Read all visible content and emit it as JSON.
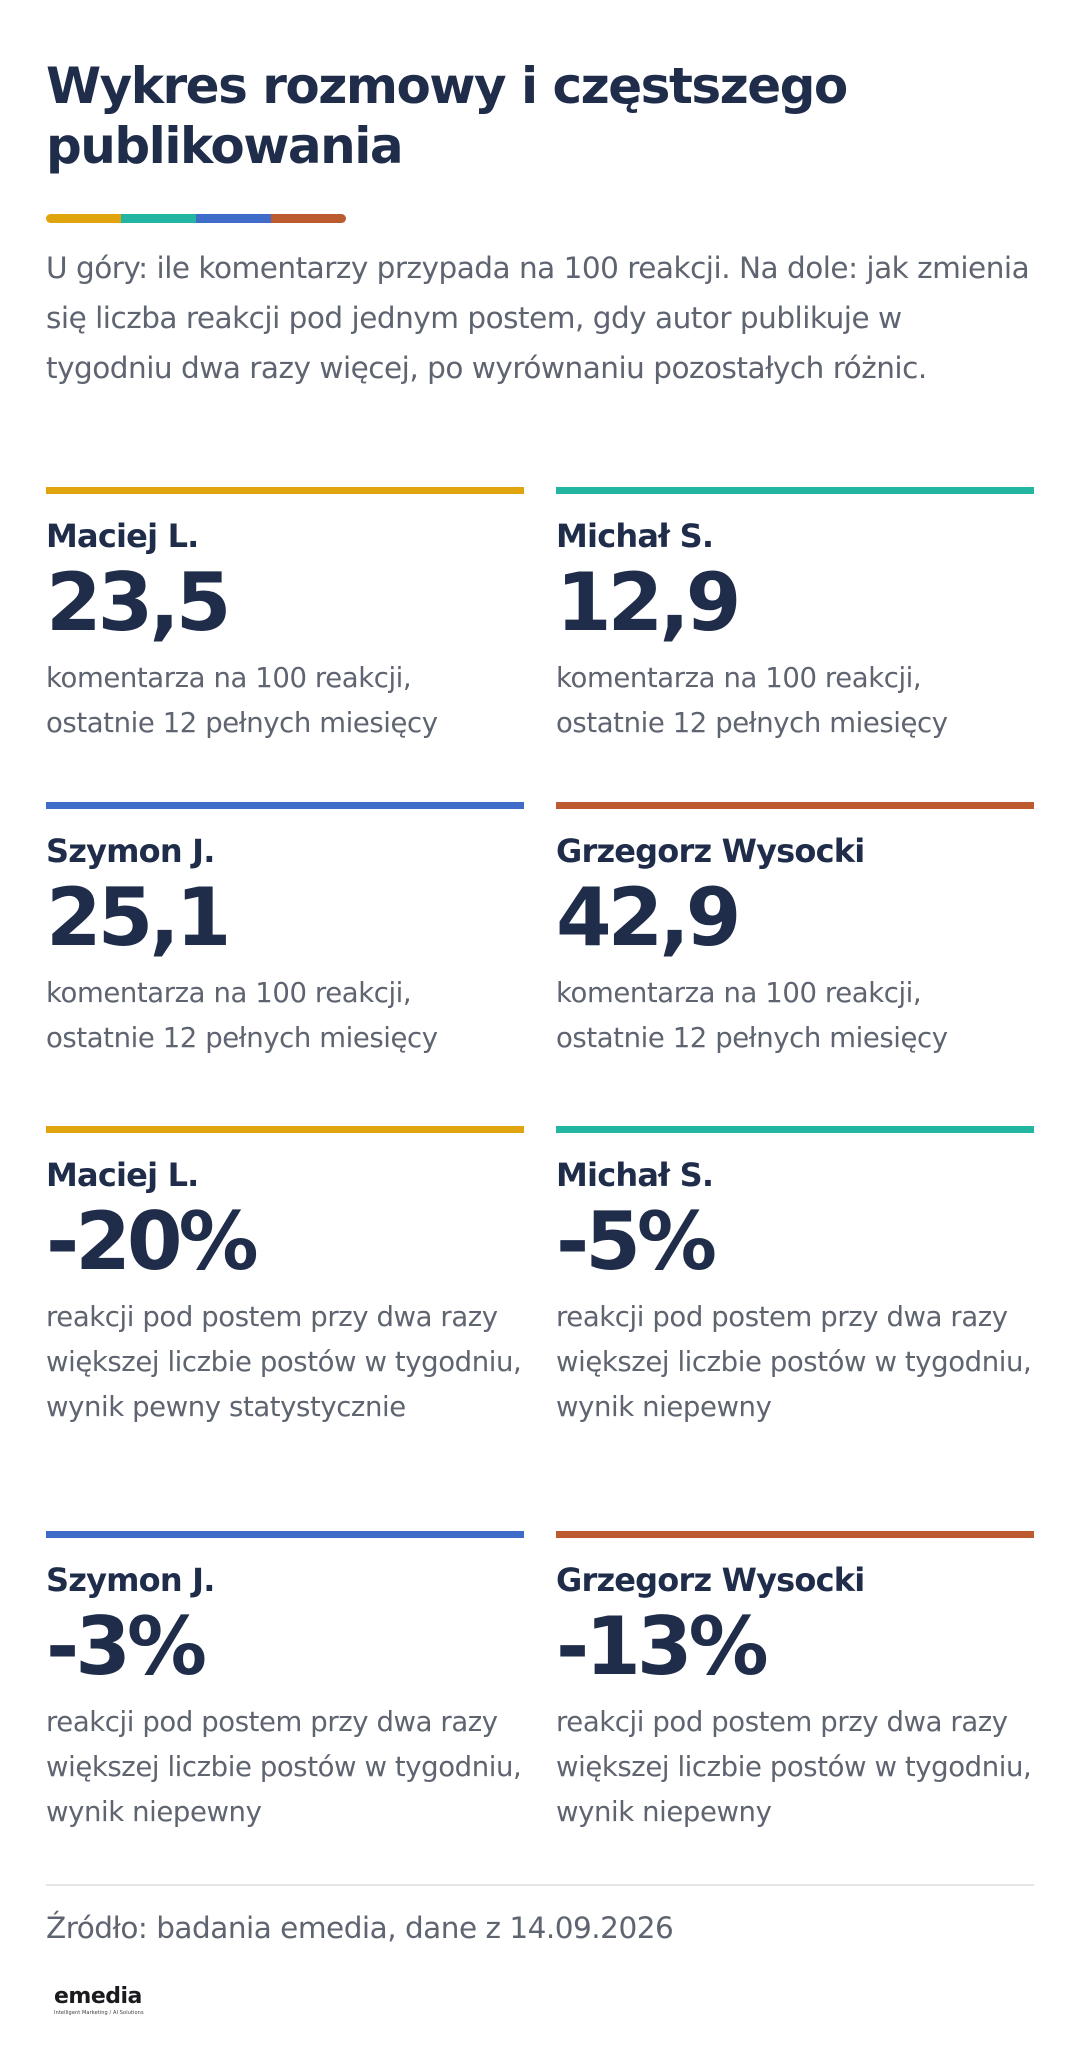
{
  "header": {
    "title": "Wykres rozmowy i częstszego publikowania",
    "subtitle": "U góry: ile komentarzy przypada na 100 reakcji. Na dole: jak zmienia się liczba reakcji pod jednym postem, gdy autor publikuje w tygodniu dwa razy więcej, po wyrównaniu pozostałych różnic."
  },
  "colors": {
    "gold": "#DFA40E",
    "teal": "#22B5A2",
    "blue": "#3E6CC8",
    "rust": "#BC5A30",
    "navy": "#1F2D4A",
    "gray_text": "#5E6470"
  },
  "comment_cards": [
    {
      "name": "Maciej L.",
      "value": "23,5",
      "desc": "komentarza na 100 reakcji, ostatnie 12 pełnych miesięcy",
      "color": "#DFA40E"
    },
    {
      "name": "Michał S.",
      "value": "12,9",
      "desc": "komentarza na 100 reakcji, ostatnie 12 pełnych miesięcy",
      "color": "#22B5A2"
    },
    {
      "name": "Szymon J.",
      "value": "25,1",
      "desc": "komentarza na 100 reakcji, ostatnie 12 pełnych miesięcy",
      "color": "#3E6CC8"
    },
    {
      "name": "Grzegorz Wysocki",
      "value": "42,9",
      "desc": "komentarza na 100 reakcji, ostatnie 12 pełnych miesięcy",
      "color": "#BC5A30"
    }
  ],
  "reaction_cards": [
    {
      "name": "Maciej L.",
      "value": "-20%",
      "desc": "reakcji pod postem przy dwa razy większej liczbie postów w tygodniu, wynik pewny statystycznie",
      "color": "#DFA40E"
    },
    {
      "name": "Michał S.",
      "value": "-5%",
      "desc": "reakcji pod postem przy dwa razy większej liczbie postów w tygodniu, wynik niepewny",
      "color": "#22B5A2"
    },
    {
      "name": "Szymon J.",
      "value": "-3%",
      "desc": "reakcji pod postem przy dwa razy większej liczbie postów w tygodniu, wynik niepewny",
      "color": "#3E6CC8"
    },
    {
      "name": "Grzegorz Wysocki",
      "value": "-13%",
      "desc": "reakcji pod postem przy dwa razy większej liczbie postów w tygodniu, wynik niepewny",
      "color": "#BC5A30"
    }
  ],
  "footer": {
    "source": "Źródło: badania emedia, dane z 14.09.2026",
    "logo_text": "emedia",
    "logo_tagline": "Intelligent Marketing / AI Solutions"
  }
}
